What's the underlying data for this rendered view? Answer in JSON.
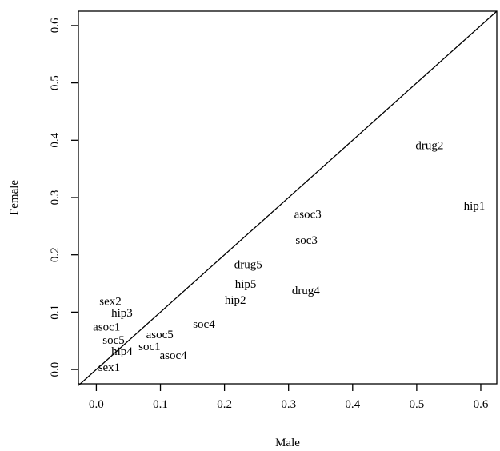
{
  "chart_data": {
    "type": "scatter",
    "title": "",
    "xlabel": "Male",
    "ylabel": "Female",
    "xlim": [
      -0.028,
      0.625
    ],
    "ylim": [
      -0.025,
      0.625
    ],
    "xticks": [
      0.0,
      0.1,
      0.2,
      0.3,
      0.4,
      0.5,
      0.6
    ],
    "yticks": [
      0.0,
      0.1,
      0.2,
      0.3,
      0.4,
      0.5,
      0.6
    ],
    "tick_labels": [
      "0.0",
      "0.1",
      "0.2",
      "0.3",
      "0.4",
      "0.5",
      "0.6"
    ],
    "reference_line": {
      "type": "identity",
      "from": [
        -0.028,
        -0.028
      ],
      "to": [
        0.625,
        0.625
      ]
    },
    "grid": false,
    "legend": "none",
    "points": [
      {
        "label": "drug2",
        "x": 0.52,
        "y": 0.39
      },
      {
        "label": "hip1",
        "x": 0.59,
        "y": 0.285
      },
      {
        "label": "asoc3",
        "x": 0.33,
        "y": 0.27
      },
      {
        "label": "soc3",
        "x": 0.328,
        "y": 0.225
      },
      {
        "label": "drug5",
        "x": 0.237,
        "y": 0.182
      },
      {
        "label": "hip5",
        "x": 0.233,
        "y": 0.148
      },
      {
        "label": "drug4",
        "x": 0.327,
        "y": 0.137
      },
      {
        "label": "hip2",
        "x": 0.217,
        "y": 0.12
      },
      {
        "label": "soc4",
        "x": 0.168,
        "y": 0.078
      },
      {
        "label": "sex2",
        "x": 0.022,
        "y": 0.118
      },
      {
        "label": "hip3",
        "x": 0.04,
        "y": 0.098
      },
      {
        "label": "asoc1",
        "x": 0.016,
        "y": 0.073
      },
      {
        "label": "asoc5",
        "x": 0.099,
        "y": 0.06
      },
      {
        "label": "soc5",
        "x": 0.027,
        "y": 0.05
      },
      {
        "label": "soc1",
        "x": 0.083,
        "y": 0.039
      },
      {
        "label": "hip4",
        "x": 0.04,
        "y": 0.031
      },
      {
        "label": "asoc4",
        "x": 0.12,
        "y": 0.024
      },
      {
        "label": "sex1",
        "x": 0.02,
        "y": 0.003
      }
    ]
  }
}
